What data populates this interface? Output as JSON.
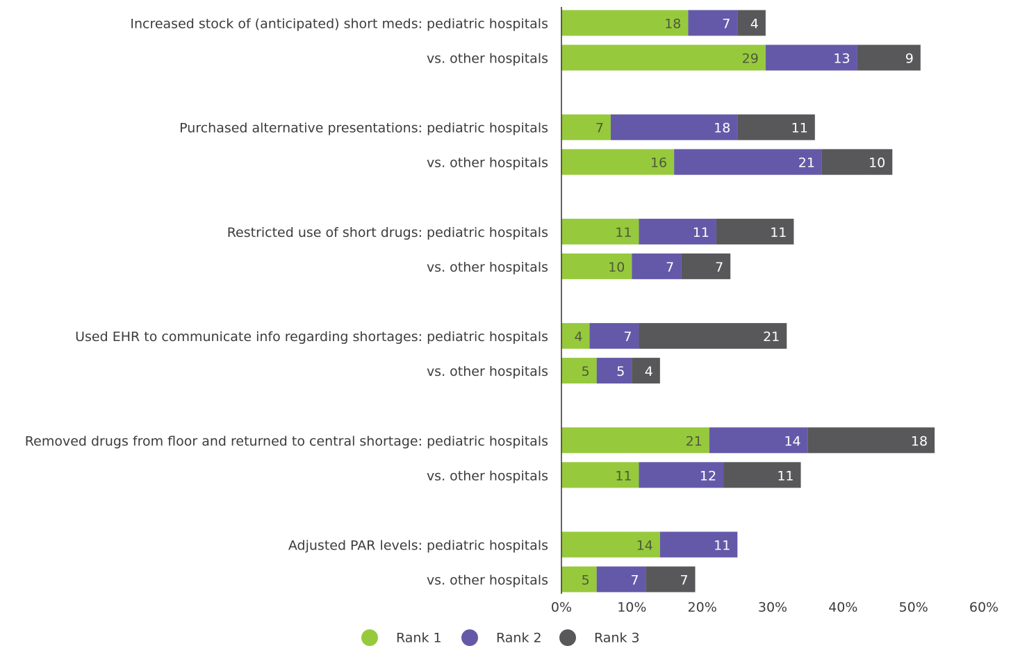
{
  "chart_data": {
    "type": "bar",
    "orientation": "horizontal",
    "stacked": true,
    "categories": [
      "Increased stock of (anticipated) short meds: pediatric hospitals",
      "vs. other hospitals",
      "Purchased alternative presentations: pediatric hospitals",
      "vs. other hospitals",
      "Restricted use of short drugs: pediatric hospitals",
      "vs. other hospitals",
      "Used EHR to communicate info regarding shortages: pediatric hospitals",
      "vs. other hospitals",
      "Removed drugs from floor and returned to central shortage: pediatric hospitals",
      "vs. other hospitals",
      "Adjusted PAR levels: pediatric hospitals",
      "vs. other hospitals"
    ],
    "series": [
      {
        "name": "Rank 1",
        "color": "#97c93d",
        "values": [
          18,
          29,
          7,
          16,
          11,
          10,
          4,
          5,
          21,
          11,
          14,
          5
        ]
      },
      {
        "name": "Rank 2",
        "color": "#6459a8",
        "values": [
          7,
          13,
          18,
          21,
          11,
          7,
          7,
          5,
          14,
          12,
          11,
          7
        ]
      },
      {
        "name": "Rank 3",
        "color": "#58585a",
        "values": [
          4,
          9,
          11,
          10,
          11,
          7,
          21,
          4,
          18,
          11,
          null,
          7
        ]
      }
    ],
    "xlim": [
      0,
      60
    ],
    "xticks": [
      {
        "value": 0,
        "label": "0%"
      },
      {
        "value": 10,
        "label": "10%"
      },
      {
        "value": 20,
        "label": "20%"
      },
      {
        "value": 30,
        "label": "30%"
      },
      {
        "value": 40,
        "label": "40%"
      },
      {
        "value": 50,
        "label": "50%"
      },
      {
        "value": 60,
        "label": "60%"
      }
    ],
    "legend": "bottom"
  }
}
